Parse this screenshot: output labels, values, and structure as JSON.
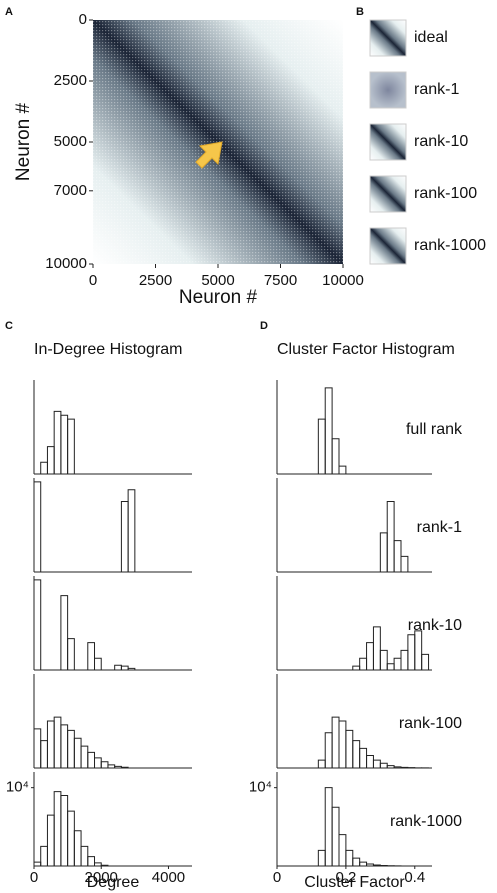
{
  "panel_labels": [
    "A",
    "B",
    "C",
    "D"
  ],
  "thumbnails": [
    "ideal",
    "rank-1",
    "rank-10",
    "rank-100",
    "rank-1000"
  ],
  "chart_data": [
    {
      "type": "heatmap",
      "x_label": "Neuron #",
      "y_label": "Neuron #",
      "xlim": [
        0,
        10000
      ],
      "ylim": [
        10000,
        0
      ],
      "xticks": [
        0,
        2500,
        5000,
        7500,
        10000
      ],
      "yticks": [
        0,
        2500,
        5000,
        7000,
        10000
      ]
    },
    {
      "type": "histogram",
      "title": "In-Degree Histogram",
      "x_label": "Degree",
      "xlim": [
        0,
        4700
      ],
      "ylim": [
        0,
        12000
      ],
      "xticks": [
        0,
        2000,
        4000
      ],
      "bins": [
        0,
        200,
        400,
        600,
        800,
        1000,
        1200,
        1400,
        1600,
        1800,
        2000,
        2200,
        2400,
        2600,
        2800,
        3000,
        3200,
        3400,
        3600,
        3800,
        4000,
        4200,
        4400,
        4600
      ],
      "series": [
        {
          "counts": [
            0,
            1500,
            3500,
            8000,
            7500,
            7000,
            0,
            0,
            0,
            0,
            0,
            0,
            0,
            0,
            0,
            0,
            0,
            0,
            0,
            0,
            0,
            0,
            0
          ]
        },
        {
          "counts": [
            11500,
            0,
            0,
            0,
            0,
            0,
            0,
            0,
            0,
            0,
            0,
            0,
            0,
            9000,
            10500,
            0,
            0,
            0,
            0,
            0,
            0,
            0,
            0
          ]
        },
        {
          "counts": [
            11500,
            0,
            0,
            0,
            9500,
            4000,
            0,
            0,
            3500,
            1500,
            0,
            0,
            600,
            500,
            200,
            0,
            0,
            0,
            0,
            0,
            0,
            0,
            0
          ]
        },
        {
          "counts": [
            5000,
            3500,
            6000,
            6500,
            5500,
            4800,
            3800,
            2800,
            2000,
            1300,
            800,
            400,
            200,
            100,
            0,
            0,
            0,
            0,
            0,
            0,
            0,
            0,
            0
          ]
        },
        {
          "counts": [
            500,
            2500,
            6500,
            9500,
            9000,
            7000,
            4500,
            2500,
            1200,
            400,
            100,
            0,
            0,
            0,
            0,
            0,
            0,
            0,
            0,
            0,
            0,
            0,
            0
          ],
          "yticks": [
            {
              "value": 10000,
              "label": "10⁴"
            }
          ]
        }
      ]
    },
    {
      "type": "histogram",
      "title": "Cluster Factor Histogram",
      "x_label": "Cluster Factor",
      "xlim": [
        0,
        0.45
      ],
      "ylim": [
        0,
        12000
      ],
      "xticks": [
        0,
        0.2,
        0.4
      ],
      "bins": [
        0,
        0.02,
        0.04,
        0.06,
        0.08,
        0.1,
        0.12,
        0.14,
        0.16,
        0.18,
        0.2,
        0.22,
        0.24,
        0.26,
        0.28,
        0.3,
        0.32,
        0.34,
        0.36,
        0.38,
        0.4,
        0.42,
        0.44
      ],
      "series": [
        {
          "name": "full rank",
          "counts": [
            0,
            0,
            0,
            0,
            0,
            0,
            7000,
            11000,
            4500,
            1000,
            0,
            0,
            0,
            0,
            0,
            0,
            0,
            0,
            0,
            0,
            0,
            0
          ]
        },
        {
          "name": "rank-1",
          "counts": [
            0,
            0,
            0,
            0,
            0,
            0,
            0,
            0,
            0,
            0,
            0,
            0,
            0,
            0,
            0,
            5000,
            9000,
            4000,
            2000,
            0,
            0,
            0
          ]
        },
        {
          "name": "rank-10",
          "counts": [
            0,
            0,
            0,
            0,
            0,
            0,
            0,
            0,
            0,
            0,
            0,
            500,
            1500,
            3500,
            5500,
            2500,
            800,
            1500,
            2500,
            4500,
            5000,
            2000
          ]
        },
        {
          "name": "rank-100",
          "counts": [
            0,
            0,
            0,
            0,
            0,
            0,
            1000,
            4500,
            6500,
            6000,
            4800,
            3500,
            2500,
            1600,
            1000,
            600,
            300,
            150,
            80,
            40,
            20,
            10
          ]
        },
        {
          "name": "rank-1000",
          "counts": [
            0,
            0,
            0,
            0,
            0,
            0,
            2000,
            10000,
            7500,
            4000,
            2000,
            1000,
            500,
            250,
            120,
            60,
            30,
            15,
            0,
            0,
            0,
            0
          ],
          "yticks": [
            {
              "value": 10000,
              "label": "10⁴"
            }
          ]
        }
      ]
    }
  ]
}
